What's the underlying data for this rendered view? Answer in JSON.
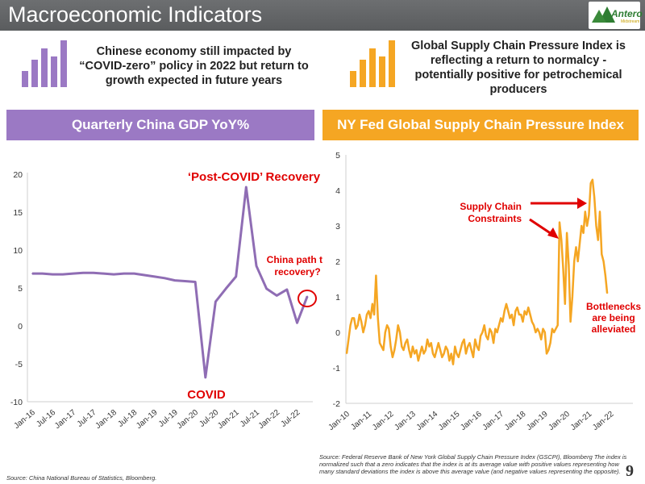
{
  "header": {
    "title": "Macroeconomic Indicators",
    "logo_text": "Antero",
    "logo_sub": "Midstream"
  },
  "left_callout": "Chinese economy still impacted by “COVID-zero” policy in 2022 but return to growth expected in future years",
  "right_callout": "Global Supply Chain Pressure Index is reflecting a return to normalcy - potentially positive for petrochemical producers",
  "colors": {
    "purple": "#8f6db4",
    "purple_bar": "#9b79c4",
    "orange": "#f5a623",
    "red": "#e00000",
    "header_gray": "#636567"
  },
  "left_panel_title": "Quarterly China GDP YoY%",
  "right_panel_title": "NY Fed Global Supply Chain Pressure Index",
  "left_annotations": {
    "recovery": "‘Post-COVID’ Recovery",
    "covid": "COVID",
    "path": "China path to recovery?"
  },
  "right_annotations": {
    "constraints": "Supply Chain Constraints",
    "bottlenecks": "Bottlenecks are being alleviated"
  },
  "left_source": "Source: China National Bureau of Statistics, Bloomberg.",
  "right_source": "Source: Federal Reserve Bank of New York Global Supply Chain Pressure Index (GSCPI), Bloomberg The index is normalized such that a zero indicates that the index is at its average value with positive values representing how many standard deviations the index is above this average value (and negative values representing the opposite).",
  "page_number": "9",
  "chart_data": [
    {
      "type": "line",
      "title": "Quarterly China GDP YoY%",
      "x": [
        "Jan-16",
        "Apr-16",
        "Jul-16",
        "Oct-16",
        "Jan-17",
        "Apr-17",
        "Jul-17",
        "Oct-17",
        "Jan-18",
        "Apr-18",
        "Jul-18",
        "Oct-18",
        "Jan-19",
        "Apr-19",
        "Jul-19",
        "Oct-19",
        "Jan-20",
        "Apr-20",
        "Jul-20",
        "Oct-20",
        "Jan-21",
        "Apr-21",
        "Jul-21",
        "Oct-21",
        "Jan-22",
        "Apr-22",
        "Jul-22",
        "Oct-22"
      ],
      "x_tick_labels": [
        "Jan-16",
        "Jul-16",
        "Jan-17",
        "Jul-17",
        "Jan-18",
        "Jul-18",
        "Jan-19",
        "Jul-19",
        "Jan-20",
        "Jul-20",
        "Jan-21",
        "Jul-21",
        "Jan-22",
        "Jul-22"
      ],
      "series": [
        {
          "values": [
            6.9,
            6.9,
            6.8,
            6.8,
            6.9,
            7.0,
            7.0,
            6.9,
            6.8,
            6.9,
            6.9,
            6.7,
            6.5,
            6.3,
            6.0,
            5.9,
            5.8,
            -6.8,
            3.2,
            4.9,
            6.5,
            18.3,
            7.9,
            4.9,
            4.0,
            4.8,
            0.4,
            3.9
          ]
        }
      ],
      "ylim": [
        -10,
        20
      ],
      "yticks": [
        -10,
        -5,
        0,
        5,
        10,
        15,
        20
      ],
      "color": "#8f6db4"
    },
    {
      "type": "line",
      "title": "NY Fed Global Supply Chain Pressure Index",
      "x_tick_labels": [
        "Jan-10",
        "Jan-11",
        "Jan-12",
        "Jan-13",
        "Jan-14",
        "Jan-15",
        "Jan-16",
        "Jan-17",
        "Jan-18",
        "Jan-19",
        "Jan-20",
        "Jan-21",
        "Jan-22"
      ],
      "x_start": "Jan-10",
      "frequency": "monthly",
      "series": [
        {
          "values": [
            -0.6,
            -0.2,
            0.2,
            0.4,
            0.4,
            0.1,
            0.2,
            0.5,
            0.3,
            0.0,
            0.2,
            0.5,
            0.6,
            0.4,
            0.8,
            0.5,
            1.6,
            0.4,
            -0.3,
            -0.4,
            -0.5,
            0.0,
            0.2,
            0.1,
            -0.4,
            -0.7,
            -0.5,
            -0.2,
            0.2,
            0.0,
            -0.4,
            -0.5,
            -0.3,
            -0.2,
            -0.5,
            -0.7,
            -0.4,
            -0.6,
            -0.5,
            -0.8,
            -0.6,
            -0.4,
            -0.6,
            -0.5,
            -0.2,
            -0.4,
            -0.3,
            -0.6,
            -0.7,
            -0.5,
            -0.3,
            -0.5,
            -0.7,
            -0.6,
            -0.4,
            -0.5,
            -0.8,
            -0.6,
            -0.9,
            -0.4,
            -0.6,
            -0.7,
            -0.5,
            -0.3,
            -0.2,
            -0.6,
            -0.4,
            -0.3,
            -0.5,
            -0.7,
            -0.2,
            -0.4,
            -0.5,
            -0.1,
            0.0,
            0.2,
            -0.1,
            -0.2,
            0.1,
            0.0,
            -0.3,
            0.1,
            0.0,
            0.2,
            0.4,
            0.3,
            0.6,
            0.8,
            0.6,
            0.4,
            0.5,
            0.2,
            0.6,
            0.7,
            0.5,
            0.5,
            0.3,
            0.6,
            0.5,
            0.7,
            0.5,
            0.3,
            0.2,
            0.0,
            0.1,
            0.0,
            -0.2,
            0.1,
            0.0,
            -0.6,
            -0.5,
            -0.3,
            0.1,
            0.0,
            0.1,
            0.2,
            3.1,
            2.6,
            1.8,
            0.8,
            2.8,
            1.9,
            0.3,
            1.0,
            2.0,
            2.4,
            2.0,
            2.5,
            3.0,
            2.8,
            3.4,
            3.0,
            3.3,
            4.2,
            4.3,
            3.8,
            3.0,
            2.6,
            3.4,
            2.2,
            2.0,
            1.6,
            1.1
          ]
        }
      ],
      "ylim": [
        -2,
        5
      ],
      "yticks": [
        -2,
        -1,
        0,
        1,
        2,
        3,
        4,
        5
      ],
      "color": "#f5a623"
    }
  ]
}
